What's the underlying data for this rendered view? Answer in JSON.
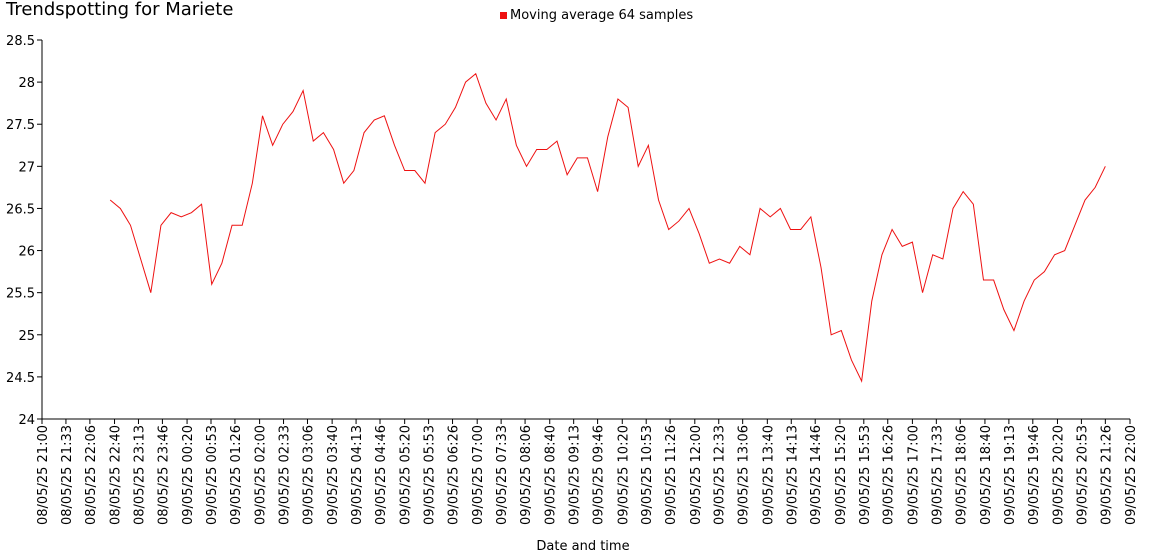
{
  "chart_data": {
    "type": "line",
    "title": "Trendspotting for Mariete",
    "x_label": "Date and time",
    "legend": "top",
    "xlim": [
      "08/05/25 21:00",
      "09/05/25 22:00"
    ],
    "xticks": [
      "08/05/25 21:00",
      "08/05/25 21:33",
      "08/05/25 22:06",
      "08/05/25 22:40",
      "08/05/25 23:13",
      "08/05/25 23:46",
      "09/05/25 00:20",
      "09/05/25 00:53",
      "09/05/25 01:26",
      "09/05/25 02:00",
      "09/05/25 02:33",
      "09/05/25 03:06",
      "09/05/25 03:40",
      "09/05/25 04:13",
      "09/05/25 04:46",
      "09/05/25 05:20",
      "09/05/25 05:53",
      "09/05/25 06:26",
      "09/05/25 07:00",
      "09/05/25 07:33",
      "09/05/25 08:06",
      "09/05/25 08:40",
      "09/05/25 09:13",
      "09/05/25 09:46",
      "09/05/25 10:20",
      "09/05/25 10:53",
      "09/05/25 11:26",
      "09/05/25 12:00",
      "09/05/25 12:33",
      "09/05/25 13:06",
      "09/05/25 13:40",
      "09/05/25 14:13",
      "09/05/25 14:46",
      "09/05/25 15:20",
      "09/05/25 15:53",
      "09/05/25 16:26",
      "09/05/25 17:00",
      "09/05/25 17:33",
      "09/05/25 18:06",
      "09/05/25 18:40",
      "09/05/25 19:13",
      "09/05/25 19:46",
      "09/05/25 20:20",
      "09/05/25 20:53",
      "09/05/25 21:26",
      "09/05/25 22:00"
    ],
    "ylim": [
      24,
      28.5
    ],
    "yticks": [
      24,
      24.5,
      25,
      25.5,
      26,
      26.5,
      27,
      27.5,
      28,
      28.5
    ],
    "x": [
      "08/05/25 22:34",
      "08/05/25 22:48",
      "08/05/25 23:02",
      "08/05/25 23:16",
      "08/05/25 23:30",
      "08/05/25 23:44",
      "08/05/25 23:58",
      "09/05/25 00:12",
      "09/05/25 00:26",
      "09/05/25 00:40",
      "09/05/25 00:54",
      "09/05/25 01:08",
      "09/05/25 01:22",
      "09/05/25 01:36",
      "09/05/25 01:50",
      "09/05/25 02:04",
      "09/05/25 02:18",
      "09/05/25 02:32",
      "09/05/25 02:46",
      "09/05/25 03:00",
      "09/05/25 03:14",
      "09/05/25 03:28",
      "09/05/25 03:42",
      "09/05/25 03:56",
      "09/05/25 04:10",
      "09/05/25 04:24",
      "09/05/25 04:38",
      "09/05/25 04:52",
      "09/05/25 05:06",
      "09/05/25 05:20",
      "09/05/25 05:34",
      "09/05/25 05:48",
      "09/05/25 06:02",
      "09/05/25 06:16",
      "09/05/25 06:30",
      "09/05/25 06:44",
      "09/05/25 06:58",
      "09/05/25 07:12",
      "09/05/25 07:26",
      "09/05/25 07:40",
      "09/05/25 07:54",
      "09/05/25 08:08",
      "09/05/25 08:22",
      "09/05/25 08:36",
      "09/05/25 08:50",
      "09/05/25 09:04",
      "09/05/25 09:18",
      "09/05/25 09:32",
      "09/05/25 09:46",
      "09/05/25 10:00",
      "09/05/25 10:14",
      "09/05/25 10:28",
      "09/05/25 10:42",
      "09/05/25 10:56",
      "09/05/25 11:10",
      "09/05/25 11:24",
      "09/05/25 11:38",
      "09/05/25 11:52",
      "09/05/25 12:06",
      "09/05/25 12:20",
      "09/05/25 12:34",
      "09/05/25 12:48",
      "09/05/25 13:02",
      "09/05/25 13:16",
      "09/05/25 13:30",
      "09/05/25 13:44",
      "09/05/25 13:58",
      "09/05/25 14:12",
      "09/05/25 14:26",
      "09/05/25 14:40",
      "09/05/25 14:54",
      "09/05/25 15:08",
      "09/05/25 15:22",
      "09/05/25 15:36",
      "09/05/25 15:50",
      "09/05/25 16:04",
      "09/05/25 16:18",
      "09/05/25 16:32",
      "09/05/25 16:46",
      "09/05/25 17:00",
      "09/05/25 17:14",
      "09/05/25 17:28",
      "09/05/25 17:42",
      "09/05/25 17:56",
      "09/05/25 18:10",
      "09/05/25 18:24",
      "09/05/25 18:38",
      "09/05/25 18:52",
      "09/05/25 19:06",
      "09/05/25 19:20",
      "09/05/25 19:34",
      "09/05/25 19:48",
      "09/05/25 20:02",
      "09/05/25 20:16",
      "09/05/25 20:30",
      "09/05/25 20:44",
      "09/05/25 20:58",
      "09/05/25 21:12",
      "09/05/25 21:26"
    ],
    "series": [
      {
        "name": "Moving average 64 samples",
        "color": "#ee1111",
        "values": [
          26.6,
          26.5,
          26.3,
          25.9,
          25.5,
          26.3,
          26.45,
          26.4,
          26.45,
          26.55,
          25.6,
          25.85,
          26.3,
          26.3,
          26.8,
          27.6,
          27.25,
          27.5,
          27.65,
          27.9,
          27.3,
          27.4,
          27.2,
          26.8,
          26.95,
          27.4,
          27.55,
          27.6,
          27.25,
          26.95,
          26.95,
          26.8,
          27.4,
          27.5,
          27.7,
          28.0,
          28.1,
          27.75,
          27.55,
          27.8,
          27.25,
          27.0,
          27.2,
          27.2,
          27.3,
          26.9,
          27.1,
          27.1,
          26.7,
          27.35,
          27.8,
          27.7,
          27.0,
          27.25,
          26.6,
          26.25,
          26.35,
          26.5,
          26.2,
          25.85,
          25.9,
          25.85,
          26.05,
          25.95,
          26.5,
          26.4,
          26.5,
          26.25,
          26.25,
          26.4,
          25.8,
          25.0,
          25.05,
          24.7,
          24.45,
          25.4,
          25.95,
          26.25,
          26.05,
          26.1,
          25.5,
          25.95,
          25.9,
          26.5,
          26.7,
          26.55,
          25.65,
          25.65,
          25.3,
          25.05,
          25.4,
          25.65,
          25.75,
          25.95,
          26.0,
          26.3,
          26.6,
          26.75,
          27.0
        ]
      }
    ]
  }
}
